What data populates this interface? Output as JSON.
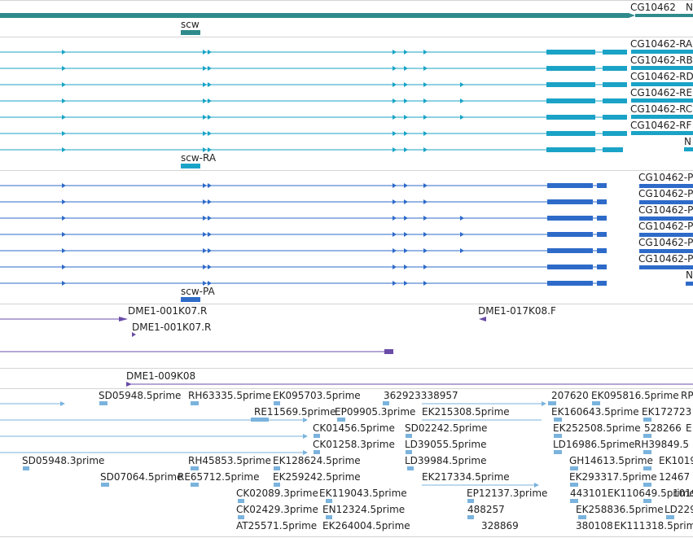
{
  "colors": {
    "gene_top": "#2f8a8c",
    "transcript_cyan": "#1aa3c6",
    "transcript_blue": "#2e6bc9",
    "clone_purple": "#6a4ca8",
    "est_light": "#7ab3dd",
    "separator": "#d4d4d4"
  },
  "gene_track": {
    "labels": [
      "CG10462",
      "N",
      "scw"
    ]
  },
  "transcript_track_1": {
    "labels": [
      "CG10462-RA",
      "CG10462-RB",
      "CG10462-RD",
      "CG10462-RE",
      "CG10462-RC",
      "CG10462-RF",
      "N",
      "scw-RA"
    ]
  },
  "transcript_track_2": {
    "labels": [
      "CG10462-P",
      "CG10462-P",
      "CG10462-P",
      "CG10462-P",
      "CG10462-P",
      "CG10462-P",
      "N",
      "scw-PA"
    ]
  },
  "clone_track": {
    "labels": [
      "DME1-001K07.R",
      "DME1-017K08.F",
      "DME1-001K07.R",
      "DME1-009K08"
    ]
  },
  "est_track": {
    "labels": [
      "SD05948.5prime",
      "RH63335.5prime",
      "EK095703.5prime",
      "362923338957",
      "207620",
      "EK095816.5prime",
      "RP",
      "RE11569.5prime",
      "EP09905.3prime",
      "EK215308.5prime",
      "EK160643.5prime",
      "EK172723",
      "CK01456.5prime",
      "SD02242.5prime",
      "EK252508.5prime",
      "528266",
      "E",
      "CK01258.3prime",
      "LD39055.5prime",
      "LD16986.5prime",
      "RH39849.5",
      "SD05948.3prime",
      "RH45853.5prime",
      "EK128624.5prime",
      "LD39984.5prime",
      "GH14613.5prime",
      "EK1019",
      "SD07064.5prime",
      "RE65712.5prime",
      "EK259242.5prime",
      "EK217334.5prime",
      "EK293317.5prime",
      "12467",
      "CK02089.3prime",
      "EK119043.5prime",
      "EP12137.3prime",
      "443101",
      "EK110649.5prime",
      "1019",
      "CK02429.3prime",
      "EN12324.5prime",
      "488257",
      "EK258836.5prime",
      "LD229",
      "AT25571.5prime",
      "EK264004.5prime",
      "328869",
      "380108",
      "EK111318.5prime"
    ]
  }
}
